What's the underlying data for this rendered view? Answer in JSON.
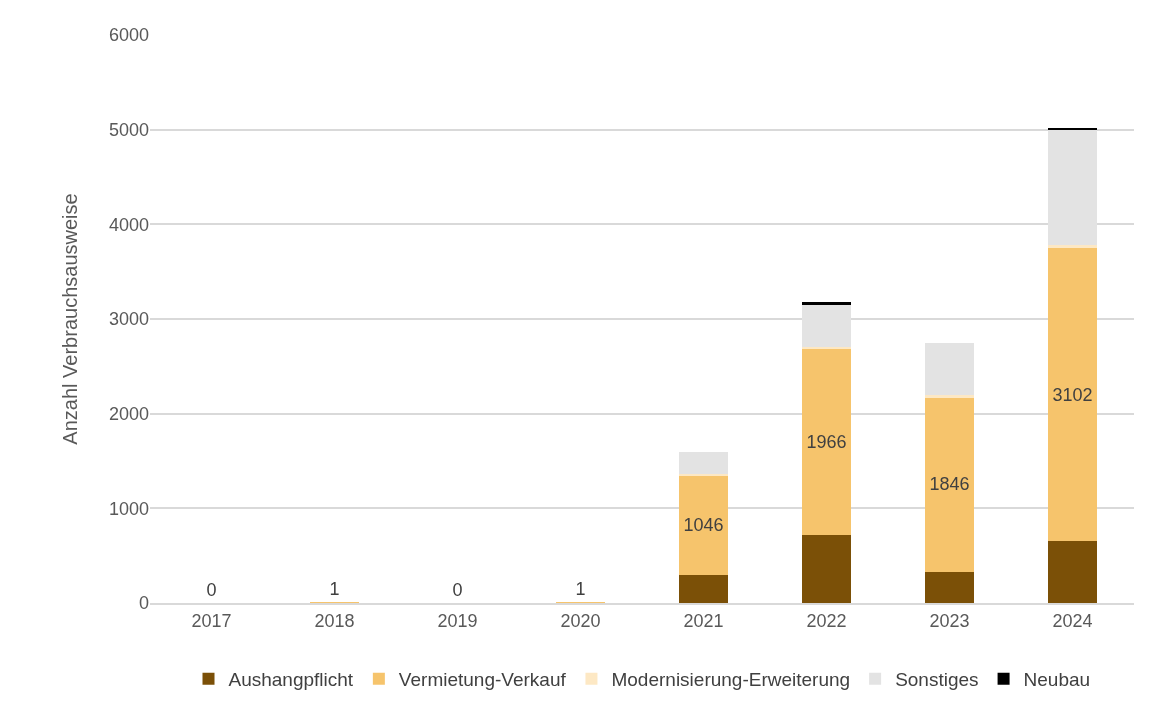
{
  "chart_data": {
    "type": "bar",
    "stacked": true,
    "ylabel": "Anzahl Verbrauchsausweise",
    "categories": [
      "2017",
      "2018",
      "2019",
      "2020",
      "2021",
      "2022",
      "2023",
      "2024"
    ],
    "series": [
      {
        "name": "Aushangpflicht",
        "color": "#7b5007",
        "values": [
          0,
          0,
          0,
          0,
          300,
          720,
          330,
          650
        ]
      },
      {
        "name": "Vermietung-Verkauf",
        "color": "#f6c46c",
        "values": [
          0,
          1,
          0,
          1,
          1046,
          1966,
          1846,
          3102
        ],
        "value_labels": [
          "0",
          "1",
          "0",
          "1",
          "1046",
          "1966",
          "1846",
          "3102"
        ]
      },
      {
        "name": "Modernisierung-Erweiterung",
        "color": "#fde8c4",
        "values": [
          0,
          0,
          0,
          0,
          20,
          20,
          20,
          30
        ]
      },
      {
        "name": "Sonstiges",
        "color": "#e3e3e3",
        "values": [
          0,
          0,
          0,
          0,
          230,
          450,
          550,
          1220
        ]
      },
      {
        "name": "Neubau",
        "color": "#000000",
        "values": [
          0,
          0,
          0,
          0,
          0,
          20,
          0,
          10
        ]
      }
    ],
    "ylim": [
      0,
      6000
    ],
    "yticks": [
      0,
      1000,
      2000,
      3000,
      4000,
      5000,
      6000
    ],
    "grid": "y",
    "legend": "bottom"
  }
}
